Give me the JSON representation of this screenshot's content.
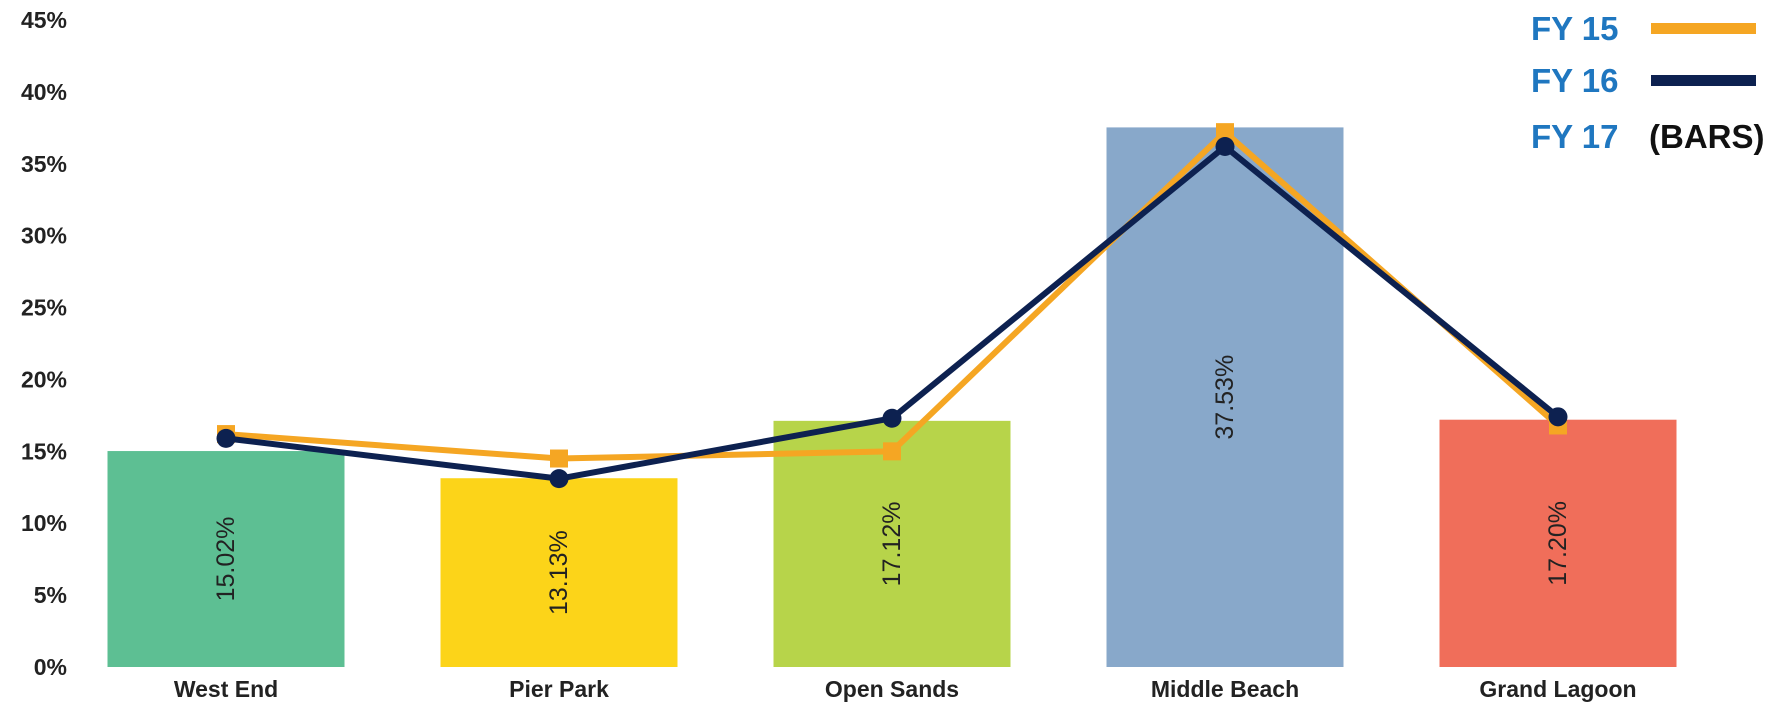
{
  "chart_data": {
    "type": "bar",
    "categories": [
      "West End",
      "Pier Park",
      "Open Sands",
      "Middle Beach",
      "Grand Lagoon"
    ],
    "bars": {
      "name": "FY 17",
      "name_suffix": "(BARS)",
      "values": [
        15.02,
        13.13,
        17.12,
        37.53,
        17.2
      ],
      "labels": [
        "15.02%",
        "13.13%",
        "17.12%",
        "37.53%",
        "17.20%"
      ],
      "colors": [
        "#5dbf93",
        "#fcd419",
        "#b7d44a",
        "#88a8ca",
        "#f06e5a"
      ]
    },
    "lines": [
      {
        "name": "FY 15",
        "color": "#f5a623",
        "marker": "square",
        "values": [
          16.2,
          14.5,
          15.0,
          37.2,
          16.8
        ]
      },
      {
        "name": "FY 16",
        "color": "#0d2150",
        "marker": "circle",
        "values": [
          15.9,
          13.1,
          17.3,
          36.2,
          17.4
        ]
      }
    ],
    "ylim": [
      0,
      45
    ],
    "yticks": [
      0,
      5,
      10,
      15,
      20,
      25,
      30,
      35,
      40,
      45
    ],
    "ytick_labels": [
      "0%",
      "5%",
      "10%",
      "15%",
      "20%",
      "25%",
      "30%",
      "35%",
      "40%",
      "45%"
    ],
    "legend": {
      "placement": "top-right",
      "text_color": "#1f77c0"
    },
    "grid": false
  }
}
